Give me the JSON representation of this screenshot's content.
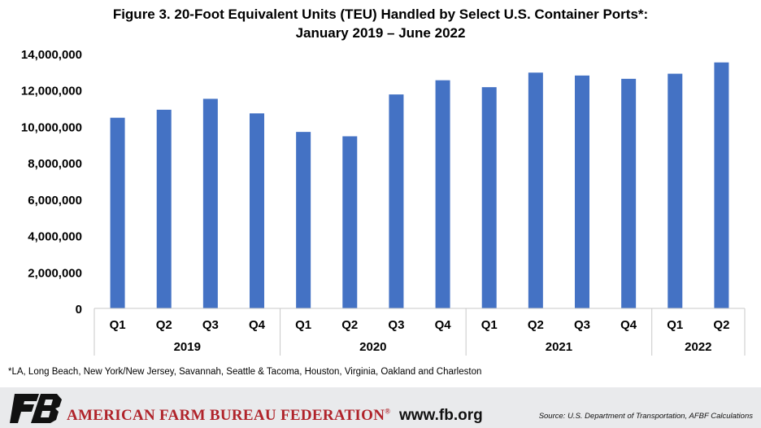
{
  "chart_data": {
    "type": "bar",
    "title": [
      "Figure 3. 20-Foot Equivalent Units (TEU) Handled by Select U.S. Container Ports*:",
      "January 2019 – June 2022"
    ],
    "categories": [
      "Q1",
      "Q2",
      "Q3",
      "Q4",
      "Q1",
      "Q2",
      "Q3",
      "Q4",
      "Q1",
      "Q2",
      "Q3",
      "Q4",
      "Q1",
      "Q2"
    ],
    "groups": [
      {
        "label": "2019",
        "count": 4
      },
      {
        "label": "2020",
        "count": 4
      },
      {
        "label": "2021",
        "count": 4
      },
      {
        "label": "2022",
        "count": 2
      }
    ],
    "values": [
      10480000,
      10920000,
      11520000,
      10720000,
      9700000,
      9460000,
      11760000,
      12540000,
      12160000,
      12960000,
      12800000,
      12620000,
      12900000,
      13520000
    ],
    "ylim": [
      0,
      14000000
    ],
    "yticks": [
      0,
      2000000,
      4000000,
      6000000,
      8000000,
      10000000,
      12000000,
      14000000
    ],
    "ytick_labels": [
      "0",
      "2,000,000",
      "4,000,000",
      "6,000,000",
      "8,000,000",
      "10,000,000",
      "12,000,000",
      "14,000,000"
    ],
    "bar_color": "#4472c4",
    "grid": false,
    "legend": "none"
  },
  "footnote": "*LA, Long Beach, New York/New Jersey, Savannah, Seattle & Tacoma, Houston, Virginia, Oakland and Charleston",
  "footer": {
    "org_name": "AMERICAN FARM BUREAU FEDERATION",
    "org_mark": "®",
    "website": "www.fb.org",
    "source": "Source: U.S. Department of Transportation, AFBF Calculations",
    "brand_color": "#b0232a",
    "logo_icon": "fb-logo-icon"
  }
}
